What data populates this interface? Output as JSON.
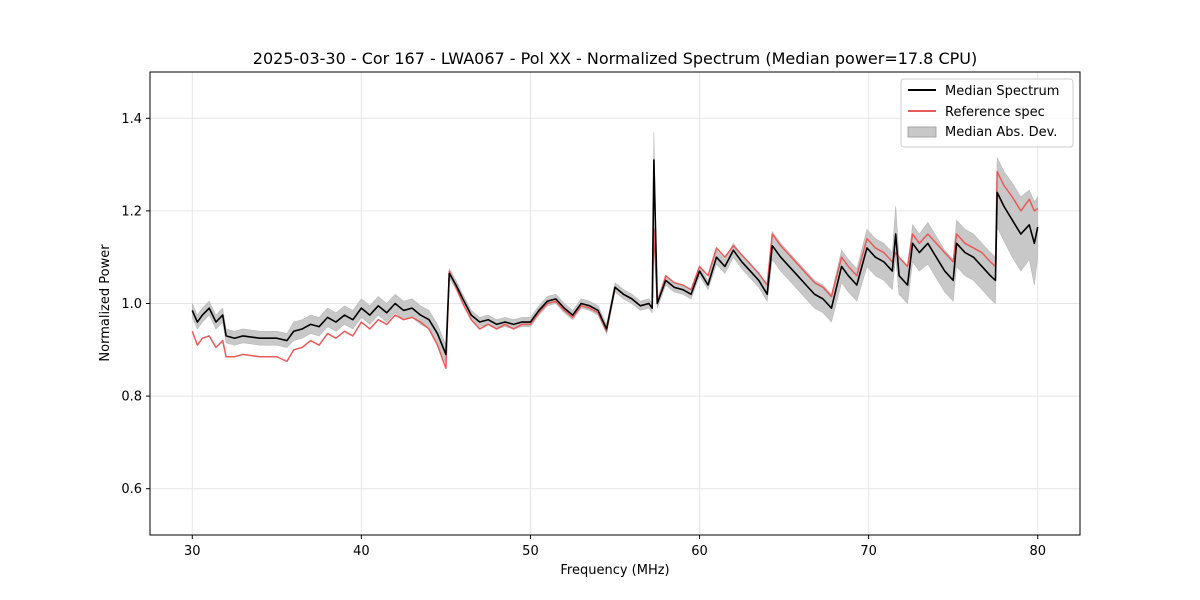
{
  "chart_data": {
    "type": "line",
    "title": "2025-03-30 - Cor 167 - LWA067 - Pol XX - Normalized Spectrum (Median power=17.8 CPU)",
    "xlabel": "Frequency (MHz)",
    "ylabel": "Normalized Power",
    "xlim": [
      27.5,
      82.5
    ],
    "ylim": [
      0.5,
      1.5
    ],
    "xticks": [
      30,
      40,
      50,
      60,
      70,
      80
    ],
    "yticks": [
      0.6,
      0.8,
      1.0,
      1.2,
      1.4
    ],
    "xtick_labels": [
      "30",
      "40",
      "50",
      "60",
      "70",
      "80"
    ],
    "ytick_labels": [
      "0.6",
      "0.8",
      "1.0",
      "1.2",
      "1.4"
    ],
    "grid": true,
    "legend_position": "top-right",
    "legend": [
      {
        "label": "Median Spectrum",
        "kind": "line",
        "color": "#000000"
      },
      {
        "label": "Reference spec",
        "kind": "line",
        "color": "#e85a5a"
      },
      {
        "label": "Median Abs. Dev.",
        "kind": "fill",
        "color": "#c8c8c8"
      }
    ],
    "series": [
      {
        "name": "Median Spectrum",
        "color": "#000000",
        "x": [
          30.0,
          30.3,
          30.6,
          31.0,
          31.4,
          31.8,
          32.0,
          32.5,
          33.0,
          34.0,
          35.0,
          35.6,
          36.0,
          36.5,
          37.0,
          37.5,
          38.0,
          38.5,
          39.0,
          39.5,
          40.0,
          40.5,
          41.0,
          41.5,
          42.0,
          42.5,
          43.0,
          43.5,
          44.0,
          44.5,
          45.0,
          45.2,
          45.6,
          46.0,
          46.5,
          47.0,
          47.5,
          48.0,
          48.5,
          49.0,
          49.5,
          50.0,
          50.5,
          51.0,
          51.5,
          52.0,
          52.5,
          53.0,
          53.5,
          54.0,
          54.5,
          55.0,
          55.5,
          56.0,
          56.5,
          57.0,
          57.2,
          57.3,
          57.5,
          58.0,
          58.5,
          59.0,
          59.5,
          60.0,
          60.5,
          61.0,
          61.5,
          62.0,
          62.5,
          63.0,
          63.5,
          64.0,
          64.3,
          64.8,
          65.3,
          65.8,
          66.3,
          66.8,
          67.3,
          67.8,
          68.4,
          68.8,
          69.3,
          69.9,
          70.4,
          70.9,
          71.4,
          71.6,
          71.8,
          72.3,
          72.6,
          73.0,
          73.5,
          74.0,
          74.5,
          75.0,
          75.2,
          75.7,
          76.2,
          76.7,
          77.2,
          77.5,
          77.6,
          78.0,
          78.5,
          79.0,
          79.5,
          79.8,
          80.0
        ],
        "y": [
          0.985,
          0.96,
          0.975,
          0.99,
          0.96,
          0.975,
          0.93,
          0.925,
          0.93,
          0.925,
          0.925,
          0.92,
          0.94,
          0.945,
          0.955,
          0.95,
          0.97,
          0.96,
          0.975,
          0.965,
          0.99,
          0.975,
          0.995,
          0.98,
          1.0,
          0.985,
          0.99,
          0.975,
          0.965,
          0.935,
          0.89,
          1.065,
          1.04,
          1.01,
          0.975,
          0.96,
          0.965,
          0.955,
          0.96,
          0.955,
          0.96,
          0.96,
          0.985,
          1.005,
          1.01,
          0.99,
          0.975,
          1.0,
          0.995,
          0.985,
          0.945,
          1.035,
          1.02,
          1.01,
          0.995,
          1.0,
          0.99,
          1.31,
          1.0,
          1.05,
          1.035,
          1.03,
          1.02,
          1.07,
          1.04,
          1.1,
          1.08,
          1.115,
          1.09,
          1.07,
          1.05,
          1.02,
          1.125,
          1.1,
          1.08,
          1.06,
          1.04,
          1.02,
          1.01,
          0.99,
          1.08,
          1.06,
          1.04,
          1.12,
          1.1,
          1.09,
          1.07,
          1.15,
          1.06,
          1.04,
          1.13,
          1.11,
          1.13,
          1.1,
          1.07,
          1.05,
          1.13,
          1.11,
          1.1,
          1.08,
          1.06,
          1.05,
          1.24,
          1.21,
          1.18,
          1.15,
          1.17,
          1.13,
          1.165
        ]
      },
      {
        "name": "Reference spec",
        "color": "#e85a5a",
        "x": [
          30.0,
          30.3,
          30.6,
          31.0,
          31.4,
          31.8,
          32.0,
          32.5,
          33.0,
          34.0,
          35.0,
          35.6,
          36.0,
          36.5,
          37.0,
          37.5,
          38.0,
          38.5,
          39.0,
          39.5,
          40.0,
          40.5,
          41.0,
          41.5,
          42.0,
          42.5,
          43.0,
          43.5,
          44.0,
          44.5,
          45.0,
          45.2,
          45.6,
          46.0,
          46.5,
          47.0,
          47.5,
          48.0,
          48.5,
          49.0,
          49.5,
          50.0,
          50.5,
          51.0,
          51.5,
          52.0,
          52.5,
          53.0,
          53.5,
          54.0,
          54.5,
          55.0,
          55.5,
          56.0,
          56.5,
          57.0,
          57.2,
          57.3,
          57.5,
          58.0,
          58.5,
          59.0,
          59.5,
          60.0,
          60.5,
          61.0,
          61.5,
          62.0,
          62.5,
          63.0,
          63.5,
          64.0,
          64.3,
          64.8,
          65.3,
          65.8,
          66.3,
          66.8,
          67.3,
          67.8,
          68.4,
          68.8,
          69.3,
          69.9,
          70.4,
          70.9,
          71.4,
          71.6,
          71.8,
          72.3,
          72.6,
          73.0,
          73.5,
          74.0,
          74.5,
          75.0,
          75.2,
          75.7,
          76.2,
          76.7,
          77.2,
          77.5,
          77.6,
          78.0,
          78.5,
          79.0,
          79.5,
          79.8,
          80.0
        ],
        "y": [
          0.94,
          0.91,
          0.925,
          0.93,
          0.905,
          0.92,
          0.885,
          0.885,
          0.89,
          0.885,
          0.885,
          0.875,
          0.9,
          0.905,
          0.92,
          0.91,
          0.935,
          0.925,
          0.94,
          0.93,
          0.96,
          0.945,
          0.965,
          0.955,
          0.975,
          0.965,
          0.97,
          0.96,
          0.945,
          0.91,
          0.86,
          1.07,
          1.035,
          1.0,
          0.965,
          0.945,
          0.955,
          0.945,
          0.955,
          0.945,
          0.955,
          0.955,
          0.98,
          1.0,
          1.005,
          0.985,
          0.97,
          0.995,
          0.99,
          0.98,
          0.94,
          1.035,
          1.02,
          1.01,
          0.995,
          1.0,
          0.99,
          1.16,
          1.0,
          1.06,
          1.045,
          1.04,
          1.03,
          1.08,
          1.06,
          1.12,
          1.1,
          1.125,
          1.105,
          1.085,
          1.065,
          1.04,
          1.15,
          1.125,
          1.105,
          1.085,
          1.065,
          1.045,
          1.035,
          1.015,
          1.1,
          1.08,
          1.06,
          1.14,
          1.12,
          1.11,
          1.09,
          1.11,
          1.1,
          1.08,
          1.15,
          1.13,
          1.15,
          1.13,
          1.11,
          1.09,
          1.15,
          1.13,
          1.12,
          1.11,
          1.09,
          1.08,
          1.285,
          1.255,
          1.23,
          1.2,
          1.225,
          1.2,
          1.205
        ]
      }
    ],
    "band": {
      "name": "Median Abs. Dev.",
      "color": "#c8c8c8",
      "x": [
        30.0,
        30.3,
        30.6,
        31.0,
        31.4,
        31.8,
        32.0,
        32.5,
        33.0,
        34.0,
        35.0,
        35.6,
        36.0,
        36.5,
        37.0,
        37.5,
        38.0,
        38.5,
        39.0,
        39.5,
        40.0,
        40.5,
        41.0,
        41.5,
        42.0,
        42.5,
        43.0,
        43.5,
        44.0,
        44.5,
        45.0,
        45.2,
        45.6,
        46.0,
        46.5,
        47.0,
        47.5,
        48.0,
        48.5,
        49.0,
        49.5,
        50.0,
        50.5,
        51.0,
        51.5,
        52.0,
        52.5,
        53.0,
        53.5,
        54.0,
        54.5,
        55.0,
        55.5,
        56.0,
        56.5,
        57.0,
        57.2,
        57.3,
        57.5,
        58.0,
        58.5,
        59.0,
        59.5,
        60.0,
        60.5,
        61.0,
        61.5,
        62.0,
        62.5,
        63.0,
        63.5,
        64.0,
        64.3,
        64.8,
        65.3,
        65.8,
        66.3,
        66.8,
        67.3,
        67.8,
        68.4,
        68.8,
        69.3,
        69.9,
        70.4,
        70.9,
        71.4,
        71.6,
        71.8,
        72.3,
        72.6,
        73.0,
        73.5,
        74.0,
        74.5,
        75.0,
        75.2,
        75.7,
        76.2,
        76.7,
        77.2,
        77.5,
        77.6,
        78.0,
        78.5,
        79.0,
        79.5,
        79.8,
        80.0
      ],
      "upper": [
        1.0,
        0.975,
        0.99,
        1.005,
        0.975,
        0.99,
        0.945,
        0.94,
        0.945,
        0.94,
        0.94,
        0.935,
        0.96,
        0.965,
        0.975,
        0.97,
        0.99,
        0.98,
        0.995,
        0.985,
        1.01,
        0.995,
        1.015,
        1.0,
        1.02,
        1.005,
        1.01,
        0.995,
        0.985,
        0.955,
        0.91,
        1.075,
        1.05,
        1.02,
        0.985,
        0.97,
        0.975,
        0.965,
        0.97,
        0.965,
        0.97,
        0.97,
        0.995,
        1.015,
        1.02,
        1.0,
        0.985,
        1.01,
        1.005,
        0.995,
        0.955,
        1.045,
        1.03,
        1.02,
        1.005,
        1.01,
        1.0,
        1.37,
        1.01,
        1.06,
        1.045,
        1.04,
        1.03,
        1.08,
        1.05,
        1.115,
        1.095,
        1.13,
        1.105,
        1.085,
        1.065,
        1.035,
        1.155,
        1.13,
        1.11,
        1.09,
        1.07,
        1.05,
        1.04,
        1.02,
        1.115,
        1.095,
        1.075,
        1.16,
        1.14,
        1.13,
        1.11,
        1.21,
        1.1,
        1.08,
        1.17,
        1.15,
        1.175,
        1.145,
        1.115,
        1.095,
        1.18,
        1.16,
        1.15,
        1.13,
        1.11,
        1.1,
        1.315,
        1.285,
        1.26,
        1.23,
        1.245,
        1.22,
        1.23
      ],
      "lower": [
        0.97,
        0.945,
        0.96,
        0.975,
        0.945,
        0.96,
        0.915,
        0.91,
        0.915,
        0.91,
        0.91,
        0.905,
        0.92,
        0.925,
        0.935,
        0.93,
        0.95,
        0.94,
        0.955,
        0.945,
        0.97,
        0.955,
        0.975,
        0.96,
        0.98,
        0.965,
        0.97,
        0.955,
        0.945,
        0.915,
        0.87,
        1.055,
        1.03,
        1.0,
        0.965,
        0.95,
        0.955,
        0.945,
        0.95,
        0.945,
        0.95,
        0.95,
        0.975,
        0.995,
        1.0,
        0.98,
        0.965,
        0.99,
        0.985,
        0.975,
        0.935,
        1.025,
        1.01,
        1.0,
        0.985,
        0.99,
        0.98,
        1.25,
        0.99,
        1.04,
        1.025,
        1.02,
        1.01,
        1.06,
        1.03,
        1.085,
        1.065,
        1.1,
        1.075,
        1.055,
        1.035,
        1.005,
        1.095,
        1.07,
        1.05,
        1.03,
        1.01,
        0.99,
        0.98,
        0.96,
        1.045,
        1.025,
        1.005,
        1.08,
        1.06,
        1.05,
        1.03,
        1.1,
        1.02,
        1.0,
        1.09,
        1.07,
        1.085,
        1.055,
        1.025,
        1.005,
        1.08,
        1.06,
        1.05,
        1.03,
        1.01,
        1.0,
        1.165,
        1.135,
        1.1,
        1.07,
        1.095,
        1.04,
        1.1
      ]
    }
  }
}
